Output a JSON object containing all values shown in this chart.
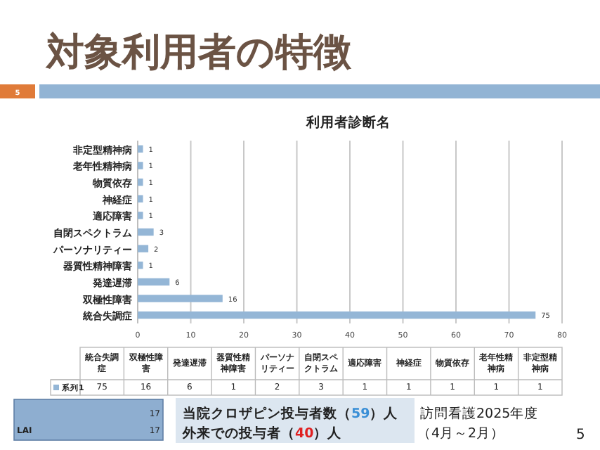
{
  "chart_data": {
    "type": "bar",
    "orientation": "horizontal",
    "title": "対象利用者の特徴",
    "subtitle": "利用者診断名",
    "categories": [
      "非定型精神病",
      "老年性精神病",
      "物質依存",
      "神経症",
      "適応障害",
      "自閉スペクトラム",
      "パーソナリティー",
      "器質性精神障害",
      "発達遅滞",
      "双極性障害",
      "統合失調症"
    ],
    "series": [
      {
        "name": "系列1",
        "color": "#94b6d6",
        "values": [
          1,
          1,
          1,
          1,
          1,
          3,
          2,
          1,
          6,
          16,
          75
        ],
        "value_labels": [
          "1",
          "1",
          "1",
          "1",
          "1",
          "3",
          "2",
          "1",
          "6",
          "16",
          "75"
        ]
      }
    ],
    "xlim": [
      0,
      80
    ],
    "xticks": [
      0,
      10,
      20,
      30,
      40,
      50,
      60,
      70,
      80
    ],
    "grid": "x",
    "data_labels": true,
    "annotations": [
      "5",
      "17",
      "LAI",
      "17",
      "当院クロザピン投与者数（59）人",
      "外来での投与者（40）人",
      "訪問看護2025年度",
      "（4月～2月）",
      "5",
      "75",
      "16",
      "6",
      "1",
      "2",
      "3",
      "1",
      "1",
      "1",
      "1",
      "1"
    ]
  }
}
